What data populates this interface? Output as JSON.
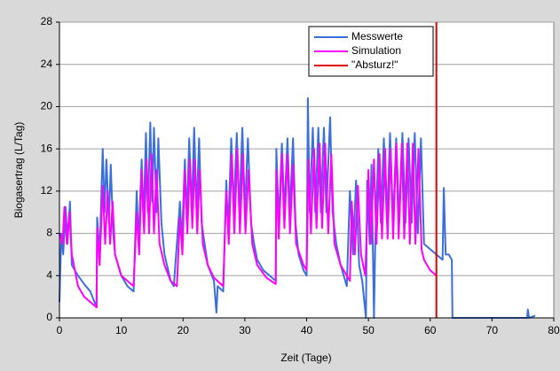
{
  "chart_data": {
    "type": "line",
    "ylabel": "Biogasertrag (L/Tag)",
    "xlabel": "Zeit (Tage)",
    "xlim": [
      0,
      80
    ],
    "xticks": [
      0,
      10,
      20,
      30,
      40,
      50,
      60,
      70,
      80
    ],
    "ylim": [
      0,
      28
    ],
    "yticks": [
      0,
      4,
      8,
      12,
      16,
      20,
      24,
      28
    ],
    "grid": true,
    "legend": "upper right",
    "series": [
      {
        "name": "Messwerte",
        "color": "#3b6fdc",
        "x": [
          0,
          0.3,
          0.6,
          1,
          1.3,
          1.7,
          2,
          2.5,
          3,
          4,
          5,
          6,
          6.1,
          6.5,
          7,
          7.3,
          7.6,
          8,
          8.3,
          8.7,
          9,
          10,
          11,
          12,
          12.5,
          12.8,
          13.3,
          13.6,
          14,
          14.3,
          14.7,
          15,
          15.3,
          15.7,
          16,
          16.5,
          17,
          18,
          18.5,
          19.5,
          19.8,
          20.3,
          20.6,
          21,
          21.4,
          21.8,
          22.2,
          22.6,
          23,
          23.5,
          24,
          25,
          25.4,
          25.6,
          26.5,
          27,
          27.3,
          27.8,
          28.2,
          28.7,
          29.1,
          29.6,
          30,
          30.5,
          31,
          31.5,
          32,
          33,
          34,
          35,
          35.1,
          35.5,
          36,
          36.4,
          36.9,
          37.3,
          37.8,
          38.2,
          38.7,
          39.5,
          40,
          40.2,
          40.5,
          41,
          41.4,
          41.9,
          42.3,
          42.8,
          43.2,
          43.8,
          44.2,
          44.8,
          45.5,
          46.5,
          47,
          47.5,
          48,
          48.5,
          49,
          49.6,
          49.8,
          50.2,
          50.5,
          50.9,
          51.1,
          51.6,
          52,
          52.5,
          53,
          53.5,
          54,
          54.5,
          55,
          55.5,
          56,
          56.5,
          57,
          57.5,
          58,
          58.5,
          59,
          60,
          61,
          62,
          62.2,
          62.5,
          63,
          63.5,
          63.6,
          75.7,
          75.8,
          76,
          77
        ],
        "values": [
          1.5,
          8,
          6,
          10.5,
          7,
          11,
          5,
          4.5,
          4,
          3.2,
          2.5,
          1,
          9.5,
          6,
          16,
          10,
          15,
          9,
          14.5,
          8,
          6,
          4,
          3,
          2.5,
          12,
          7,
          15,
          9,
          17.5,
          10,
          18.5,
          11,
          18,
          10,
          17,
          9,
          6,
          3.5,
          3,
          11,
          7,
          15,
          9,
          17,
          10,
          18,
          10,
          17,
          9,
          7,
          5,
          3.5,
          0.5,
          3,
          2.5,
          13,
          8,
          17,
          10,
          17.5,
          10,
          18,
          10,
          17,
          9,
          7,
          5.5,
          4.5,
          4,
          3.5,
          16,
          9,
          16.5,
          10,
          17,
          10,
          17,
          9,
          6,
          4.5,
          4,
          20.8,
          10,
          18,
          10,
          18,
          10,
          18,
          10,
          19,
          10,
          7,
          5,
          3,
          12,
          6,
          13,
          5,
          3.5,
          0,
          13,
          7,
          14.5,
          0,
          7,
          16,
          9,
          17,
          9,
          17.5,
          9,
          17,
          9,
          17.5,
          9,
          17,
          9,
          17.5,
          8,
          17,
          7,
          6.5,
          6,
          5.5,
          12.3,
          6,
          6,
          5.5,
          0,
          0,
          0.8,
          0,
          0.2
        ]
      },
      {
        "name": "Simulation",
        "color": "#ff00ff",
        "x": [
          0,
          0.5,
          0.8,
          1.2,
          1.6,
          2,
          3,
          4,
          5,
          6,
          6.1,
          6.5,
          7,
          7.4,
          7.8,
          8.2,
          8.6,
          9,
          10,
          11,
          12,
          12.5,
          12.9,
          13.3,
          13.7,
          14.1,
          14.5,
          14.9,
          15.3,
          15.7,
          16.2,
          17,
          18,
          19,
          19.5,
          19.9,
          20.3,
          20.7,
          21.1,
          21.5,
          21.9,
          22.3,
          22.7,
          23.2,
          24,
          25,
          26.5,
          27,
          27.4,
          27.9,
          28.3,
          28.8,
          29.2,
          29.7,
          30.1,
          30.6,
          31.2,
          32,
          33.5,
          35,
          35.1,
          35.5,
          36,
          36.4,
          36.9,
          37.3,
          37.8,
          38.3,
          39.5,
          40,
          40.3,
          40.7,
          41.2,
          41.6,
          42.1,
          42.5,
          43,
          43.5,
          44,
          44.5,
          45.5,
          47,
          47.3,
          47.8,
          48.3,
          48.8,
          49.5,
          50,
          50.4,
          50.9,
          51.3,
          51.8,
          52.2,
          52.7,
          53.1,
          53.6,
          54,
          54.5,
          54.9,
          55.4,
          55.8,
          56.3,
          56.7,
          57.2,
          57.6,
          58.1,
          58.6,
          59,
          60,
          61
        ],
        "values": [
          8,
          7,
          10.5,
          7,
          10,
          6,
          3,
          2,
          1.5,
          1,
          8.5,
          5,
          12.5,
          7,
          12,
          7,
          11,
          6,
          4,
          3.5,
          3,
          10,
          6,
          14,
          8,
          15,
          8,
          15.5,
          8,
          14,
          7,
          5,
          3.5,
          3,
          9.5,
          6,
          14,
          8,
          15,
          8.5,
          15,
          8,
          14,
          7,
          5,
          3.8,
          3,
          12,
          7,
          15.5,
          8,
          16,
          8,
          15.5,
          8,
          14,
          7,
          5,
          3.8,
          3.2,
          14,
          7.5,
          15.5,
          8.5,
          15.5,
          8,
          14.5,
          7,
          5,
          4.5,
          15,
          8,
          16,
          8.5,
          16.5,
          8.5,
          16.5,
          8,
          15.5,
          7,
          5,
          3.5,
          11,
          6,
          12.5,
          6,
          4,
          14,
          7,
          15,
          7,
          15.5,
          7.5,
          16,
          7.5,
          16,
          7.5,
          16.5,
          7.5,
          16.5,
          7.5,
          16.5,
          7,
          16.5,
          7,
          16,
          6.5,
          5.5,
          4.5,
          4
        ]
      },
      {
        "name": "\"Absturz!\"",
        "color": "#e00000",
        "x": [
          61,
          61
        ],
        "values": [
          0,
          28
        ]
      }
    ]
  }
}
